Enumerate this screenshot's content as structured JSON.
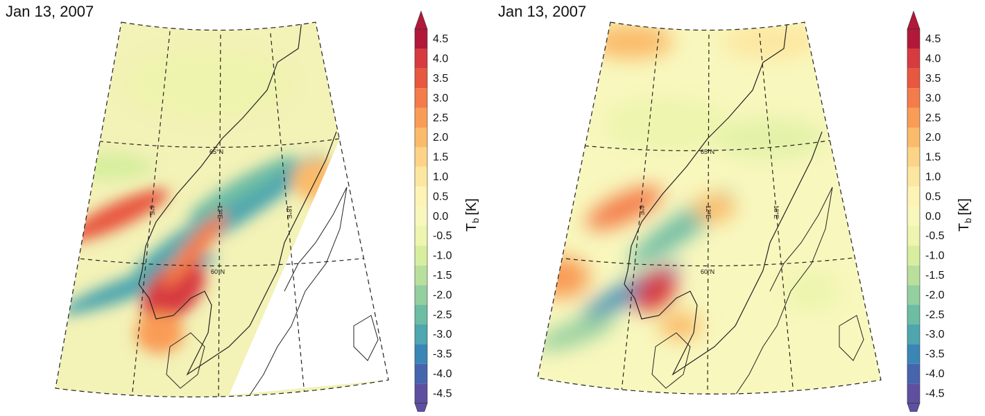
{
  "panels": [
    {
      "date": "Jan 13, 2007",
      "gridlines": {
        "lat_65": "65°N",
        "lat_60": "60°N",
        "lon_6": "6°E",
        "lon_12": "12°E",
        "lon_18": "18°E"
      }
    },
    {
      "date": "Jan 13, 2007",
      "gridlines": {
        "lat_65": "65°N",
        "lat_60": "60°N",
        "lon_6": "6°E",
        "lon_12": "12°E",
        "lon_18": "18°E"
      }
    }
  ],
  "colorbar": {
    "title": "T",
    "title_sub": "b",
    "title_unit": "[K]",
    "ticks": [
      "4.5",
      "4.0",
      "3.5",
      "3.0",
      "2.5",
      "2.0",
      "1.5",
      "1.0",
      "0.5",
      "0.0",
      "-0.5",
      "-1.0",
      "-1.5",
      "-2.0",
      "-2.5",
      "-3.0",
      "-3.5",
      "-4.0",
      "-4.5"
    ],
    "colors": [
      "#b2183a",
      "#d73a3f",
      "#e8573f",
      "#f47b4a",
      "#f99c57",
      "#fbbb6b",
      "#fdd487",
      "#fde7a0",
      "#fdf3b5",
      "#f8f8bd",
      "#edf5ae",
      "#d8ee9f",
      "#b8e09c",
      "#93cf9f",
      "#6dbca4",
      "#4ea6ae",
      "#3a86b7",
      "#4665ae",
      "#5f4fa1"
    ]
  }
}
